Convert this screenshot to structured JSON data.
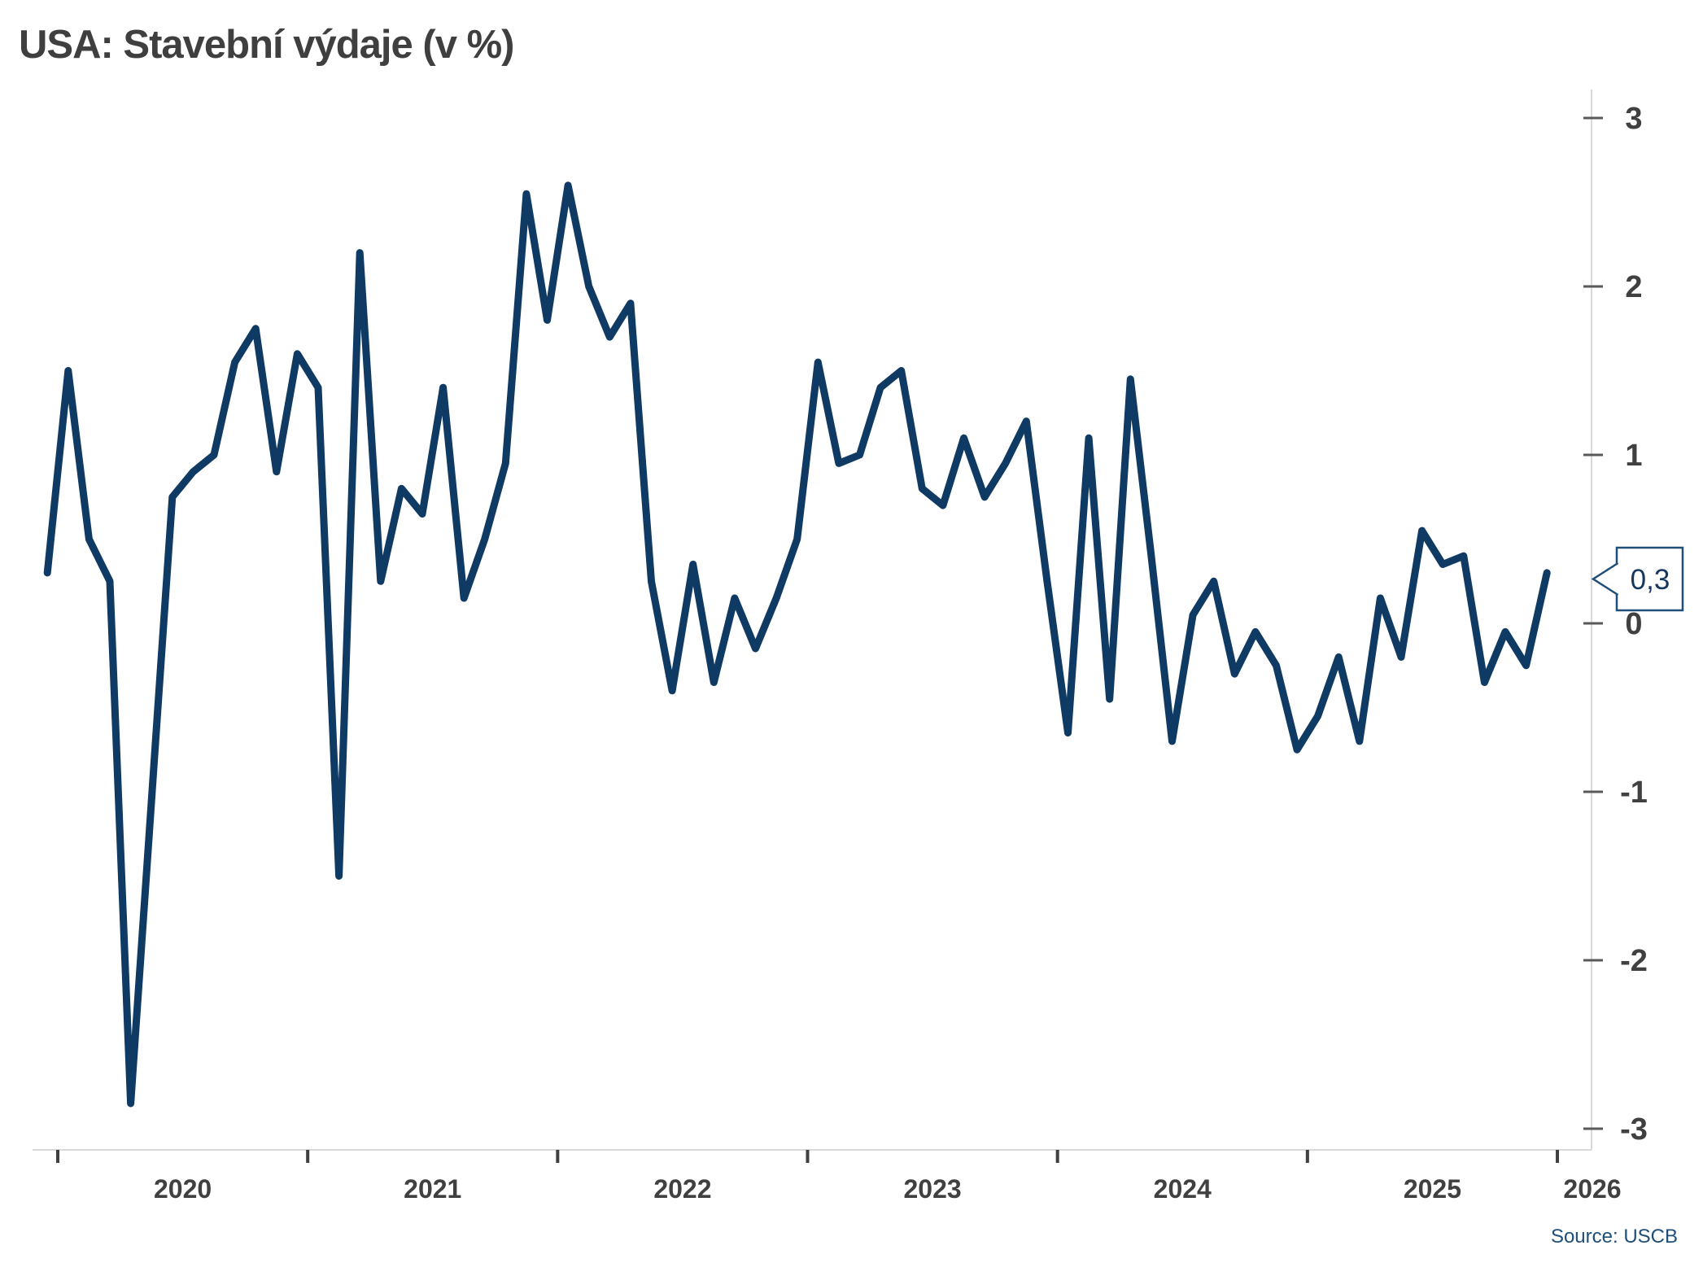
{
  "title": "USA: Stavební výdaje (v %)",
  "source": "Source: USCB",
  "callout": {
    "label": "0,3"
  },
  "colors": {
    "line": "#0e3a63",
    "axis_line": "#d9d9d9",
    "y_tick": "#595959",
    "x_tick": "#404040",
    "axis_label": "#404040",
    "title": "#3f3f3f",
    "callout": "#1f4e79",
    "source": "#1f4e79",
    "background": "#ffffff"
  },
  "y_axis": {
    "ticks": [
      3,
      2,
      1,
      0,
      -1,
      -2,
      -3
    ],
    "min": -3,
    "max": 3,
    "side": "right"
  },
  "x_axis": {
    "year_labels": [
      "2020",
      "2021",
      "2022",
      "2023",
      "2024",
      "2025",
      "2026"
    ]
  },
  "chart_data": {
    "type": "line",
    "title": "USA: Stavební výdaje (v %)",
    "ylabel": "%",
    "xlabel": "",
    "frequency": "monthly",
    "ylim": [
      -3,
      3
    ],
    "grid": false,
    "legend": "none",
    "last_value_label": "0,3",
    "x": [
      "2019-12",
      "2020-01",
      "2020-02",
      "2020-03",
      "2020-04",
      "2020-05",
      "2020-06",
      "2020-07",
      "2020-08",
      "2020-09",
      "2020-10",
      "2020-11",
      "2020-12",
      "2021-01",
      "2021-02",
      "2021-03",
      "2021-04",
      "2021-05",
      "2021-06",
      "2021-07",
      "2021-08",
      "2021-09",
      "2021-10",
      "2021-11",
      "2021-12",
      "2022-01",
      "2022-02",
      "2022-03",
      "2022-04",
      "2022-05",
      "2022-06",
      "2022-07",
      "2022-08",
      "2022-09",
      "2022-10",
      "2022-11",
      "2022-12",
      "2023-01",
      "2023-02",
      "2023-03",
      "2023-04",
      "2023-05",
      "2023-06",
      "2023-07",
      "2023-08",
      "2023-09",
      "2023-10",
      "2023-11",
      "2023-12",
      "2024-01",
      "2024-02",
      "2024-03",
      "2024-04",
      "2024-05",
      "2024-06",
      "2024-07",
      "2024-08",
      "2024-09",
      "2024-10",
      "2024-11",
      "2024-12",
      "2025-01",
      "2025-02",
      "2025-03",
      "2025-04",
      "2025-05",
      "2025-06",
      "2025-07",
      "2025-08",
      "2025-09",
      "2025-10",
      "2025-11",
      "2025-12"
    ],
    "values": [
      0.3,
      1.5,
      0.5,
      0.25,
      -2.85,
      -1.05,
      0.75,
      0.9,
      1.0,
      1.55,
      1.75,
      0.9,
      1.6,
      1.4,
      -1.5,
      2.2,
      0.25,
      0.8,
      0.65,
      1.4,
      0.15,
      0.5,
      0.95,
      2.55,
      1.8,
      2.6,
      2.0,
      1.7,
      1.9,
      0.25,
      -0.4,
      0.35,
      -0.35,
      0.15,
      -0.15,
      0.15,
      0.5,
      1.55,
      0.95,
      1.0,
      1.4,
      1.5,
      0.8,
      0.7,
      1.1,
      0.75,
      0.95,
      1.2,
      0.25,
      -0.65,
      1.1,
      -0.45,
      1.45,
      0.4,
      -0.7,
      0.05,
      0.25,
      -0.3,
      -0.05,
      -0.25,
      -0.75,
      -0.55,
      -0.2,
      -0.7,
      0.15,
      -0.2,
      0.55,
      0.35,
      0.4,
      -0.35,
      -0.05,
      -0.25,
      0.3
    ]
  }
}
